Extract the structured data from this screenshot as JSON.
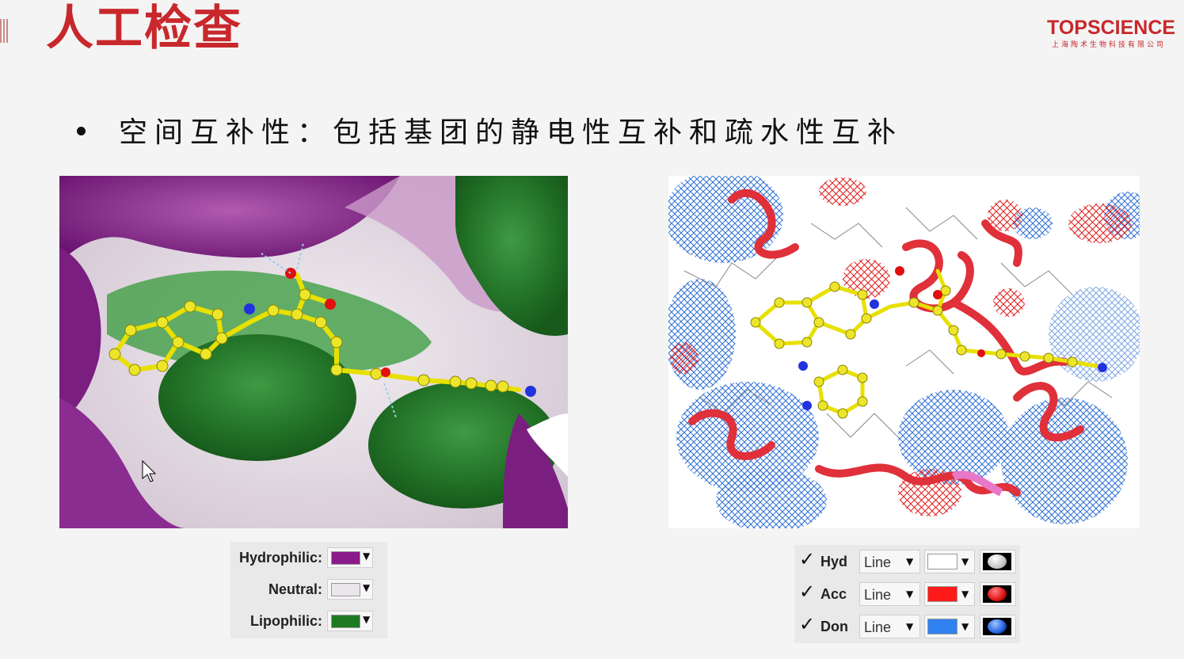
{
  "slide": {
    "title": "人工检查",
    "bullet": "空间互补性：包括基团的静电性互补和疏水性互补"
  },
  "logo": {
    "name": "TOPSCIENCE",
    "subtitle": "上海陶术生物科技有限公司",
    "color": "#c8282c"
  },
  "left_image": {
    "alt_icon": "molecular-surface-hydrophobicity-view"
  },
  "right_image": {
    "alt_icon": "molecular-mesh-interaction-view"
  },
  "legend_left": {
    "rows": [
      {
        "label": "Hydrophilic:",
        "color": "#8b1a8b"
      },
      {
        "label": "Neutral:",
        "color": "#ebe6ec"
      },
      {
        "label": "Lipophilic:",
        "color": "#1e7a22"
      }
    ],
    "dropdown_glyph": "▼"
  },
  "legend_right": {
    "rows": [
      {
        "checked": true,
        "check_glyph": "✓",
        "label": "Hyd",
        "style": "Line",
        "color": "#ffffff",
        "sphere_color": "#ffffff"
      },
      {
        "checked": true,
        "check_glyph": "✓",
        "label": "Acc",
        "style": "Line",
        "color": "#ff1a1a",
        "sphere_color": "#e01010"
      },
      {
        "checked": true,
        "check_glyph": "✓",
        "label": "Don",
        "style": "Line",
        "color": "#2f82f0",
        "sphere_color": "#1f62e0"
      }
    ],
    "dropdown_glyph": "▼"
  }
}
